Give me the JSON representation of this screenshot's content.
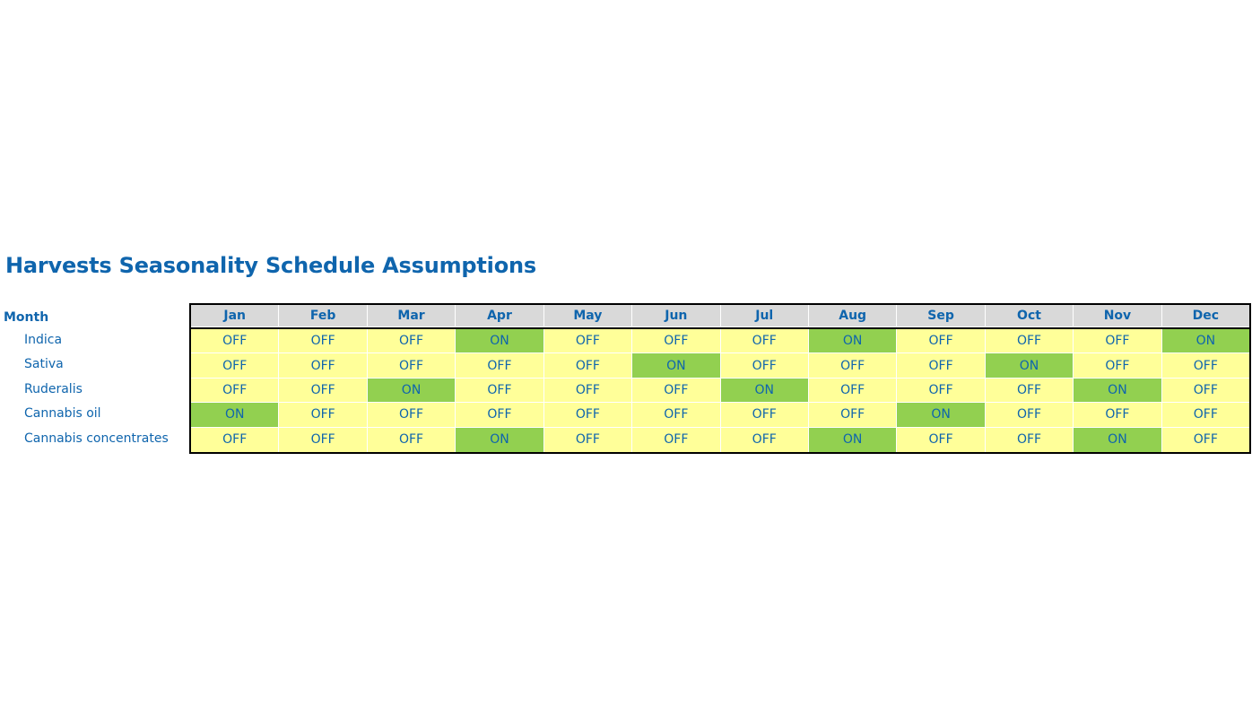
{
  "title": "Harvests Seasonality Schedule Assumptions",
  "header_label": "Month",
  "months": [
    "Jan",
    "Feb",
    "Mar",
    "Apr",
    "May",
    "Jun",
    "Jul",
    "Aug",
    "Sep",
    "Oct",
    "Nov",
    "Dec"
  ],
  "colors": {
    "text": "#0f65ad",
    "off_fill": "#ffff99",
    "on_fill": "#92d050",
    "header_fill": "#d9d9d9"
  },
  "rows": [
    {
      "label": "Indica",
      "values": [
        "OFF",
        "OFF",
        "OFF",
        "ON",
        "OFF",
        "OFF",
        "OFF",
        "ON",
        "OFF",
        "OFF",
        "OFF",
        "ON"
      ]
    },
    {
      "label": "Sativa",
      "values": [
        "OFF",
        "OFF",
        "OFF",
        "OFF",
        "OFF",
        "ON",
        "OFF",
        "OFF",
        "OFF",
        "ON",
        "OFF",
        "OFF"
      ]
    },
    {
      "label": "Ruderalis",
      "values": [
        "OFF",
        "OFF",
        "ON",
        "OFF",
        "OFF",
        "OFF",
        "ON",
        "OFF",
        "OFF",
        "OFF",
        "ON",
        "OFF"
      ]
    },
    {
      "label": "Cannabis oil",
      "values": [
        "ON",
        "OFF",
        "OFF",
        "OFF",
        "OFF",
        "OFF",
        "OFF",
        "OFF",
        "ON",
        "OFF",
        "OFF",
        "OFF"
      ]
    },
    {
      "label": "Cannabis concentrates",
      "values": [
        "OFF",
        "OFF",
        "OFF",
        "ON",
        "OFF",
        "OFF",
        "OFF",
        "ON",
        "OFF",
        "OFF",
        "ON",
        "OFF"
      ]
    }
  ]
}
